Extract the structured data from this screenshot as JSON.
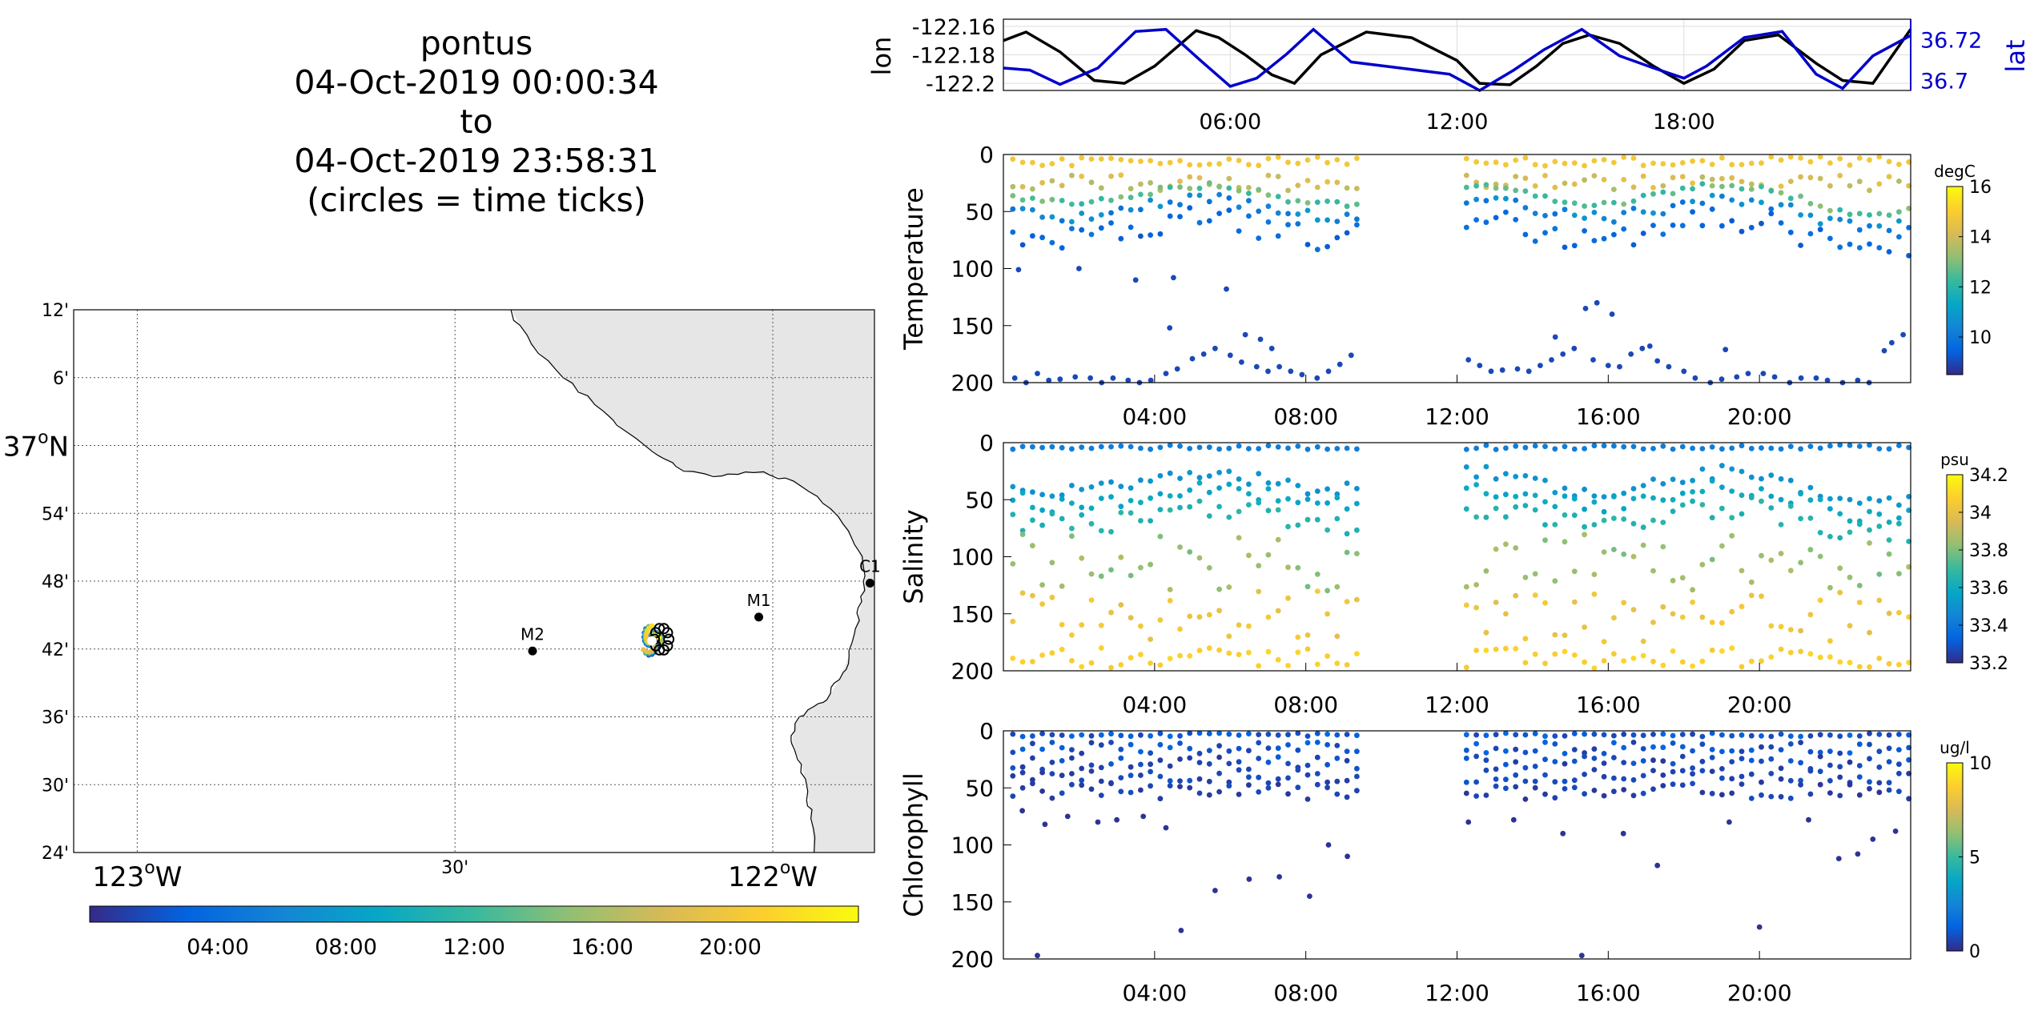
{
  "header": {
    "lines": [
      "pontus",
      "04-Oct-2019 00:00:34",
      "to",
      "04-Oct-2019 23:58:31",
      "(circles = time ticks)"
    ]
  },
  "colors": {
    "track_blue": "#0000cc",
    "land": "#e6e6e6",
    "parula": [
      "#352a87",
      "#0363e1",
      "#1485d4",
      "#06a7c6",
      "#38b99e",
      "#92bf73",
      "#d9ba56",
      "#fcce2e",
      "#f9fb0e"
    ]
  },
  "chart_data": [
    {
      "type": "map",
      "name": "map",
      "lon_range": [
        -123.1,
        -121.84
      ],
      "lat_range": [
        36.4,
        37.2
      ],
      "lon_ticks": [
        {
          "value": -123.0,
          "label": "123",
          "degree": true,
          "suffix": "W"
        },
        {
          "value": -122.5,
          "label": "30'",
          "degree": false,
          "suffix": ""
        },
        {
          "value": -122.0,
          "label": "122",
          "degree": true,
          "suffix": "W"
        }
      ],
      "lat_ticks": [
        {
          "value": 37.2,
          "label": "12'",
          "degree": false,
          "suffix": ""
        },
        {
          "value": 37.1,
          "label": "6'",
          "degree": false,
          "suffix": ""
        },
        {
          "value": 37.0,
          "label": "37",
          "degree": true,
          "suffix": "N"
        },
        {
          "value": 36.9,
          "label": "54'",
          "degree": false,
          "suffix": ""
        },
        {
          "value": 36.8,
          "label": "48'",
          "degree": false,
          "suffix": ""
        },
        {
          "value": 36.7,
          "label": "42'",
          "degree": false,
          "suffix": ""
        },
        {
          "value": 36.6,
          "label": "36'",
          "degree": false,
          "suffix": ""
        },
        {
          "value": 36.5,
          "label": "30'",
          "degree": false,
          "suffix": ""
        },
        {
          "value": 36.4,
          "label": "24'",
          "degree": false,
          "suffix": ""
        }
      ],
      "stations": [
        {
          "name": "M2",
          "lon": -122.378,
          "lat": 36.697
        },
        {
          "name": "M1",
          "lon": -122.022,
          "lat": 36.747
        },
        {
          "name": "C1",
          "lon": -121.847,
          "lat": 36.797
        }
      ],
      "coastline": [
        [
          -122.412,
          37.2
        ],
        [
          -122.38,
          37.15
        ],
        [
          -122.33,
          37.1
        ],
        [
          -122.28,
          37.06
        ],
        [
          -122.23,
          37.02
        ],
        [
          -122.18,
          36.985
        ],
        [
          -122.14,
          36.962
        ],
        [
          -122.08,
          36.955
        ],
        [
          -122.03,
          36.96
        ],
        [
          -121.98,
          36.952
        ],
        [
          -121.93,
          36.925
        ],
        [
          -121.89,
          36.885
        ],
        [
          -121.865,
          36.845
        ],
        [
          -121.855,
          36.808
        ],
        [
          -121.86,
          36.77
        ],
        [
          -121.87,
          36.73
        ],
        [
          -121.88,
          36.69
        ],
        [
          -121.895,
          36.655
        ],
        [
          -121.915,
          36.625
        ],
        [
          -121.945,
          36.61
        ],
        [
          -121.965,
          36.59
        ],
        [
          -121.97,
          36.56
        ],
        [
          -121.955,
          36.53
        ],
        [
          -121.945,
          36.49
        ],
        [
          -121.94,
          36.45
        ],
        [
          -121.935,
          36.4
        ]
      ],
      "vehicle_track": {
        "lon": -122.19,
        "lat": 36.712
      },
      "colorbar_ticks": [
        "04:00",
        "08:00",
        "12:00",
        "16:00",
        "20:00"
      ]
    },
    {
      "type": "line",
      "name": "lon/lat",
      "ylabel_left": "lon",
      "ylabel_right": "lat",
      "ylim_left": [
        -122.205,
        -122.155
      ],
      "yticks_left": [
        -122.16,
        -122.18,
        -122.2
      ],
      "ylim_right": [
        36.695,
        36.73
      ],
      "yticks_right": [
        36.72,
        36.7
      ],
      "xlim": [
        0,
        24
      ],
      "xticks": [
        6,
        12,
        18
      ],
      "xtick_labels": [
        "06:00",
        "12:00",
        "18:00"
      ],
      "series": [
        {
          "name": "lon",
          "x": [
            0,
            0.6,
            1.5,
            2.4,
            3.2,
            4.0,
            5.1,
            5.7,
            6.4,
            7.1,
            7.7,
            8.4,
            9.6,
            10.8,
            12.0,
            12.6,
            13.4,
            14.1,
            14.8,
            15.5,
            16.3,
            17.2,
            18.0,
            18.8,
            19.6,
            20.5,
            21.5,
            22.2,
            23.0,
            24.0
          ],
          "y": [
            -122.17,
            -122.164,
            -122.178,
            -122.198,
            -122.2,
            -122.188,
            -122.163,
            -122.168,
            -122.18,
            -122.194,
            -122.2,
            -122.18,
            -122.164,
            -122.168,
            -122.184,
            -122.2,
            -122.201,
            -122.188,
            -122.172,
            -122.166,
            -122.172,
            -122.188,
            -122.2,
            -122.19,
            -122.17,
            -122.166,
            -122.186,
            -122.198,
            -122.2,
            -122.162
          ]
        },
        {
          "name": "lat",
          "x": [
            0,
            0.7,
            1.5,
            2.5,
            3.5,
            4.3,
            5.2,
            6.0,
            6.7,
            7.5,
            8.2,
            9.2,
            10.5,
            11.8,
            12.6,
            13.5,
            14.3,
            15.3,
            16.3,
            17.2,
            18.0,
            18.6,
            19.6,
            20.6,
            21.5,
            22.2,
            23.0,
            24.0
          ],
          "y": [
            36.706,
            36.705,
            36.698,
            36.706,
            36.724,
            36.725,
            36.71,
            36.697,
            36.701,
            36.713,
            36.725,
            36.709,
            36.706,
            36.703,
            36.695,
            36.705,
            36.715,
            36.725,
            36.712,
            36.706,
            36.701,
            36.707,
            36.721,
            36.724,
            36.703,
            36.696,
            36.712,
            36.722
          ]
        }
      ]
    },
    {
      "type": "scatter",
      "name": "temperature",
      "ylabel": "Temperature",
      "colorbar_label": "degC",
      "cbar_range": [
        8.5,
        16
      ],
      "cbar_ticks": [
        10,
        12,
        14,
        16
      ],
      "ylim": [
        200,
        0
      ],
      "yticks": [
        0,
        50,
        100,
        150,
        200
      ],
      "xlim": [
        0,
        24
      ],
      "xticks": [
        4,
        8,
        12,
        16,
        20
      ],
      "xtick_labels": [
        "04:00",
        "08:00",
        "12:00",
        "16:00",
        "20:00"
      ],
      "casts": {
        "t_start": [
          0.25,
          12.25
        ],
        "t_end": [
          9.35,
          24.0
        ],
        "spacing": 0.26
      },
      "deep_points": [
        [
          0.3,
          196
        ],
        [
          0.6,
          200
        ],
        [
          0.9,
          192
        ],
        [
          1.2,
          198
        ],
        [
          1.5,
          197
        ],
        [
          1.9,
          195
        ],
        [
          2.3,
          196
        ],
        [
          2.6,
          200
        ],
        [
          2.9,
          196
        ],
        [
          3.3,
          198
        ],
        [
          3.6,
          200
        ],
        [
          3.9,
          198
        ],
        [
          4.3,
          192
        ],
        [
          4.6,
          188
        ],
        [
          5.0,
          179
        ],
        [
          5.3,
          175
        ],
        [
          5.6,
          170
        ],
        [
          6.0,
          176
        ],
        [
          6.3,
          182
        ],
        [
          6.7,
          186
        ],
        [
          7.0,
          190
        ],
        [
          7.3,
          186
        ],
        [
          7.6,
          190
        ],
        [
          7.9,
          193
        ],
        [
          8.3,
          196
        ],
        [
          8.6,
          190
        ],
        [
          8.9,
          184
        ],
        [
          9.2,
          176
        ],
        [
          4.4,
          152
        ],
        [
          6.4,
          158
        ],
        [
          6.8,
          162
        ],
        [
          3.5,
          110
        ],
        [
          4.5,
          108
        ],
        [
          2.0,
          100
        ],
        [
          0.4,
          101
        ],
        [
          5.9,
          118
        ],
        [
          7.1,
          170
        ],
        [
          12.3,
          180
        ],
        [
          12.6,
          185
        ],
        [
          12.9,
          190
        ],
        [
          13.2,
          189
        ],
        [
          13.6,
          188
        ],
        [
          13.9,
          190
        ],
        [
          14.2,
          185
        ],
        [
          14.5,
          180
        ],
        [
          14.8,
          175
        ],
        [
          15.1,
          170
        ],
        [
          15.6,
          180
        ],
        [
          16.0,
          185
        ],
        [
          16.3,
          186
        ],
        [
          16.6,
          175
        ],
        [
          16.9,
          170
        ],
        [
          17.3,
          181
        ],
        [
          17.6,
          186
        ],
        [
          18.0,
          190
        ],
        [
          18.3,
          196
        ],
        [
          18.7,
          200
        ],
        [
          19.0,
          197
        ],
        [
          19.4,
          195
        ],
        [
          19.7,
          192
        ],
        [
          20.1,
          192
        ],
        [
          20.4,
          195
        ],
        [
          20.8,
          200
        ],
        [
          21.1,
          196
        ],
        [
          21.5,
          196
        ],
        [
          21.8,
          198
        ],
        [
          22.2,
          200
        ],
        [
          22.6,
          198
        ],
        [
          22.9,
          200
        ],
        [
          23.3,
          172
        ],
        [
          23.5,
          165
        ],
        [
          23.8,
          158
        ],
        [
          15.4,
          135
        ],
        [
          15.7,
          130
        ],
        [
          16.1,
          140
        ],
        [
          14.6,
          160
        ],
        [
          17.1,
          168
        ],
        [
          19.1,
          171
        ]
      ]
    },
    {
      "type": "scatter",
      "name": "salinity",
      "ylabel": "Salinity",
      "colorbar_label": "psu",
      "cbar_range": [
        33.2,
        34.2
      ],
      "cbar_ticks": [
        33.2,
        33.4,
        33.6,
        33.8,
        34,
        34.2
      ],
      "ylim": [
        200,
        0
      ],
      "yticks": [
        0,
        50,
        100,
        150,
        200
      ],
      "xlim": [
        0,
        24
      ],
      "xticks": [
        4,
        8,
        12,
        16,
        20
      ],
      "xtick_labels": [
        "04:00",
        "08:00",
        "12:00",
        "16:00",
        "20:00"
      ],
      "casts": {
        "t_start": [
          0.25,
          12.25
        ],
        "t_end": [
          9.35,
          24.0
        ],
        "spacing": 0.26
      }
    },
    {
      "type": "scatter",
      "name": "chlorophyll",
      "ylabel": "Chlorophyll",
      "colorbar_label": "ug/l",
      "cbar_range": [
        0,
        10
      ],
      "cbar_ticks": [
        0,
        5,
        10
      ],
      "ylim": [
        200,
        0
      ],
      "yticks": [
        0,
        50,
        100,
        150,
        200
      ],
      "xlim": [
        0,
        24
      ],
      "xticks": [
        4,
        8,
        12,
        16,
        20
      ],
      "xtick_labels": [
        "04:00",
        "08:00",
        "12:00",
        "16:00",
        "20:00"
      ],
      "casts": {
        "t_start": [
          0.25,
          12.25
        ],
        "t_end": [
          9.35,
          24.0
        ],
        "spacing": 0.26
      },
      "deep_points": [
        [
          1.7,
          75
        ],
        [
          2.5,
          80
        ],
        [
          3.0,
          78
        ],
        [
          3.7,
          75
        ],
        [
          1.1,
          82
        ],
        [
          4.3,
          85
        ],
        [
          0.5,
          70
        ],
        [
          5.6,
          140
        ],
        [
          4.7,
          175
        ],
        [
          6.5,
          130
        ],
        [
          7.3,
          128
        ],
        [
          8.6,
          100
        ],
        [
          9.1,
          110
        ],
        [
          8.1,
          145
        ],
        [
          0.9,
          197
        ],
        [
          15.3,
          197
        ],
        [
          20.0,
          172
        ],
        [
          17.3,
          118
        ],
        [
          16.4,
          90
        ],
        [
          21.3,
          78
        ],
        [
          22.1,
          112
        ],
        [
          23.0,
          95
        ],
        [
          23.6,
          88
        ],
        [
          13.5,
          78
        ],
        [
          19.2,
          80
        ],
        [
          14.8,
          90
        ],
        [
          12.3,
          80
        ],
        [
          22.6,
          108
        ]
      ]
    }
  ]
}
